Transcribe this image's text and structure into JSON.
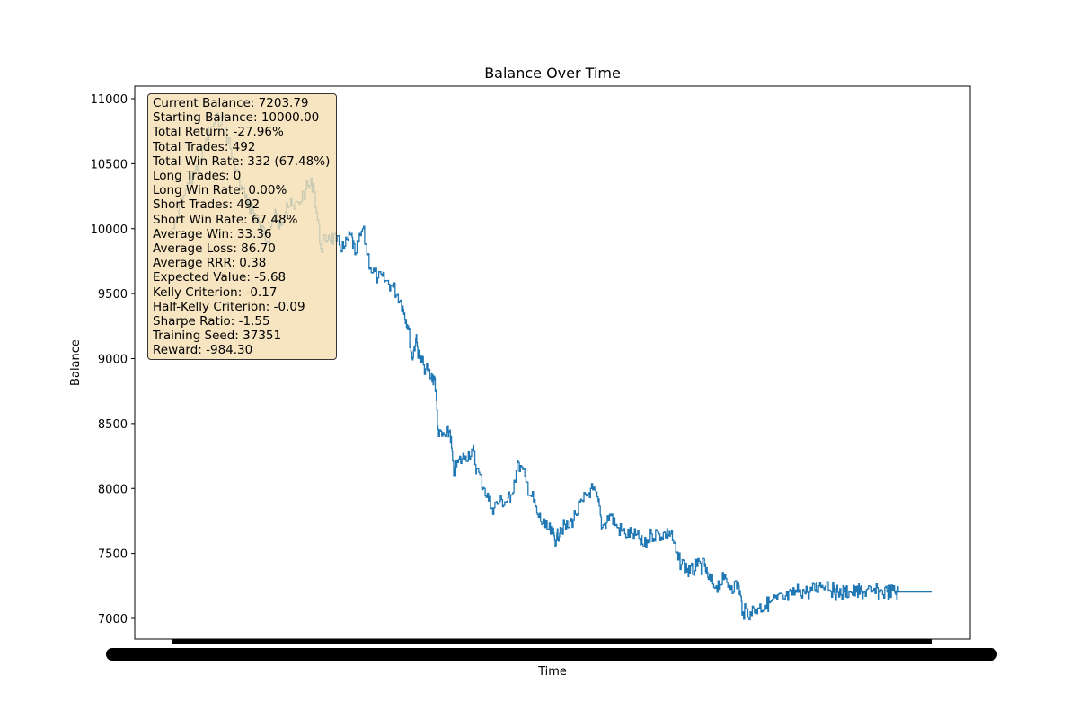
{
  "chart_data": {
    "type": "line",
    "title": "Balance Over Time",
    "xlabel": "Time",
    "ylabel": "Balance",
    "ylim": [
      6850,
      11100
    ],
    "yticks": [
      7000,
      7500,
      8000,
      8500,
      9000,
      9500,
      10000,
      10500,
      11000
    ],
    "x_tick_labels_note": "x tick labels are overlapping and illegible",
    "grid": false,
    "series": [
      {
        "color": "#1f77b4",
        "x": [
          0,
          0.02,
          0.035,
          0.05,
          0.065,
          0.08,
          0.095,
          0.1,
          0.105,
          0.115,
          0.125,
          0.135,
          0.14,
          0.15,
          0.16,
          0.175,
          0.185,
          0.195,
          0.205,
          0.215,
          0.225,
          0.235,
          0.24,
          0.25,
          0.26,
          0.27,
          0.28,
          0.29,
          0.3,
          0.305,
          0.31,
          0.315,
          0.32,
          0.325,
          0.33,
          0.34,
          0.345,
          0.35,
          0.36,
          0.365,
          0.37,
          0.375,
          0.385,
          0.395,
          0.4,
          0.41,
          0.42,
          0.43,
          0.44,
          0.445,
          0.455,
          0.465,
          0.475,
          0.48,
          0.49,
          0.5,
          0.505,
          0.51,
          0.52,
          0.53,
          0.54,
          0.55,
          0.56,
          0.565,
          0.575,
          0.585,
          0.595,
          0.605,
          0.615,
          0.62,
          0.63,
          0.64,
          0.65,
          0.655,
          0.665,
          0.675,
          0.68,
          0.69,
          0.7,
          0.705,
          0.715,
          0.725,
          0.735,
          0.745,
          0.75,
          0.76,
          0.77,
          0.78,
          0.785,
          0.795,
          0.805,
          0.815,
          0.825,
          0.835,
          0.845,
          0.85,
          0.86,
          0.87,
          0.875,
          0.885,
          0.89,
          0.9,
          0.905,
          0.91,
          0.92,
          0.93,
          0.94,
          0.95,
          0.955,
          0.965,
          0.975,
          0.985,
          0.99,
          1.0
        ],
        "y": [
          10000,
          10350,
          10500,
          10780,
          10870,
          10500,
          10250,
          10180,
          10150,
          10000,
          9900,
          10150,
          10000,
          10200,
          10150,
          10300,
          10350,
          9850,
          9950,
          9900,
          9850,
          9950,
          9800,
          10000,
          9700,
          9620,
          9600,
          9550,
          9450,
          9350,
          9250,
          9000,
          9150,
          9000,
          8950,
          8850,
          8850,
          8400,
          8400,
          8450,
          8100,
          8200,
          8250,
          8300,
          8150,
          8000,
          7850,
          7900,
          7900,
          7950,
          8200,
          8050,
          7900,
          7800,
          7700,
          7650,
          7600,
          7700,
          7700,
          7800,
          7900,
          8000,
          7900,
          7700,
          7800,
          7700,
          7650,
          7650,
          7600,
          7550,
          7650,
          7650,
          7650,
          7650,
          7450,
          7400,
          7350,
          7400,
          7400,
          7300,
          7250,
          7300,
          7250,
          7250,
          7050,
          7050,
          7080,
          7100,
          7120,
          7150,
          7150,
          7180,
          7220,
          7200,
          7220,
          7250,
          7280,
          7200,
          7200,
          7203,
          7203,
          7203,
          7203,
          7203,
          7203,
          7203,
          7203,
          7203,
          7203,
          7203,
          7203,
          7203,
          7203,
          7203
        ]
      }
    ]
  },
  "stats": [
    "Current Balance: 7203.79",
    "Starting Balance: 10000.00",
    "Total Return: -27.96%",
    "Total Trades: 492",
    "Total Win Rate: 332 (67.48%)",
    "Long Trades: 0",
    "Long Win Rate: 0.00%",
    "Short Trades: 492",
    "Short Win Rate: 67.48%",
    "Average Win: 33.36",
    "Average Loss: 86.70",
    "Average RRR: 0.38",
    "Expected Value: -5.68",
    "Kelly Criterion: -0.17",
    "Half-Kelly Criterion: -0.09",
    "Sharpe Ratio: -1.55",
    "Training Seed: 37351",
    "Reward: -984.30"
  ]
}
